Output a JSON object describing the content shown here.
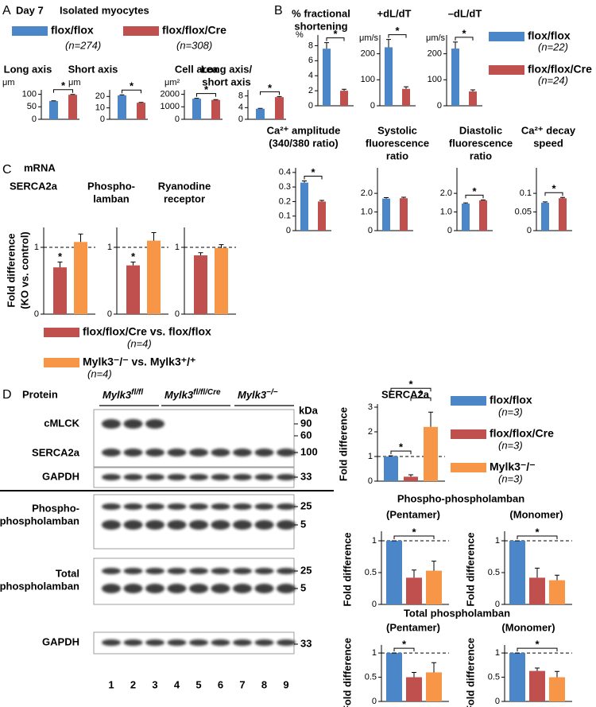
{
  "panel_a": {
    "label": "A",
    "day": "Day 7",
    "title": "Isolated myocytes",
    "legend": [
      {
        "name": "flox/flox",
        "n": "(n=274)",
        "color": "#4a86c8"
      },
      {
        "name": "flox/flox/Cre",
        "n": "(n=308)",
        "color": "#c0504d"
      }
    ]
  },
  "panel_b": {
    "label": "B",
    "legend": [
      {
        "name": "flox/flox",
        "n": "(n=22)",
        "color": "#4a86c8"
      },
      {
        "name": "flox/flox/Cre",
        "n": "(n=24)",
        "color": "#c0504d"
      }
    ]
  },
  "panel_c": {
    "label": "C",
    "title": "mRNA",
    "ylabel": [
      "Fold difference",
      "(KO vs. control)"
    ],
    "legend": [
      {
        "name": "flox/flox/Cre vs. flox/flox",
        "n": "(n=4)",
        "color": "#c0504d"
      },
      {
        "name": "Mylk3⁻/⁻ vs. Mylk3⁺/⁺",
        "n": "(n=4)",
        "color": "#f79646"
      }
    ]
  },
  "panel_d": {
    "label": "D",
    "title": "Protein",
    "headings": [
      "Phospho-phospholamban",
      "Total phospholamban"
    ],
    "legend": [
      {
        "name": "flox/flox",
        "n": "(n=3)",
        "color": "#4a86c8"
      },
      {
        "name": "flox/flox/Cre",
        "n": "(n=3)",
        "color": "#c0504d"
      },
      {
        "name": "Mylk3⁻/⁻",
        "n": "(n=3)",
        "color": "#f79646"
      }
    ]
  },
  "blot": {
    "groups": [
      {
        "base": "Mylk3",
        "sup": "fl/fl"
      },
      {
        "base": "Mylk3",
        "sup": "fl/fl/Cre"
      },
      {
        "base": "Mylk3",
        "sup": "−/−"
      }
    ],
    "rows": [
      [
        "cMLCK"
      ],
      [
        "SERCA2a"
      ],
      [
        "GAPDH"
      ],
      [
        "Phospho-",
        "phospholamban"
      ],
      [
        "Total",
        "phospholamban"
      ],
      [
        "GAPDH"
      ]
    ],
    "kda_title": "kDa",
    "kda": [
      90,
      60,
      100,
      33,
      25,
      5,
      25,
      5,
      33
    ],
    "lanes": [
      1,
      2,
      3,
      4,
      5,
      6,
      7,
      8,
      9
    ]
  },
  "chart_data": [
    {
      "type": "bar",
      "title": [
        "Long axis"
      ],
      "unit": "μm",
      "values": [
        73,
        98
      ],
      "errors": [
        1,
        1.5
      ],
      "colors": [
        "#4a86c8",
        "#c0504d"
      ],
      "ylim": [
        0,
        105
      ],
      "yticks": [
        0,
        50,
        100
      ],
      "annotations": [
        {
          "text": "*",
          "bars": [
            0,
            1
          ]
        }
      ]
    },
    {
      "type": "bar",
      "title": [
        "Short axis"
      ],
      "unit": "μm",
      "values": [
        21,
        14.5
      ],
      "errors": [
        0.4,
        0.3
      ],
      "colors": [
        "#4a86c8",
        "#c0504d"
      ],
      "ylim": [
        0,
        23
      ],
      "yticks": [
        0,
        10,
        20
      ],
      "annotations": [
        {
          "text": "*",
          "bars": [
            0,
            1
          ]
        }
      ]
    },
    {
      "type": "bar",
      "title": [
        "Cell area"
      ],
      "unit": "μm²",
      "values": [
        1650,
        1550
      ],
      "errors": [
        25,
        25
      ],
      "colors": [
        "#4a86c8",
        "#c0504d"
      ],
      "ylim": [
        0,
        2100
      ],
      "yticks": [
        0,
        1000,
        2000
      ],
      "annotations": [
        {
          "text": "*",
          "bars": [
            0,
            1
          ]
        }
      ]
    },
    {
      "type": "bar",
      "title": [
        "Long axis/",
        "short axis"
      ],
      "values": [
        3.6,
        7.6
      ],
      "errors": [
        0.15,
        0.2
      ],
      "colors": [
        "#4a86c8",
        "#c0504d"
      ],
      "ylim": [
        0,
        9
      ],
      "yticks": [
        0,
        4,
        8
      ],
      "annotations": [
        {
          "text": "*",
          "bars": [
            0,
            1
          ]
        }
      ]
    },
    {
      "type": "bar",
      "title": [
        "% fractional",
        "shortening"
      ],
      "unit": "%",
      "values": [
        7.6,
        2.0
      ],
      "errors": [
        0.8,
        0.2
      ],
      "colors": [
        "#4a86c8",
        "#c0504d"
      ],
      "ylim": [
        0,
        9
      ],
      "yticks": [
        0,
        2,
        4,
        6,
        8
      ],
      "annotations": [
        {
          "text": "*",
          "bars": [
            0,
            1
          ]
        }
      ]
    },
    {
      "type": "bar",
      "title": [
        "+dL/dT"
      ],
      "unit": "μm/s",
      "values": [
        225,
        65
      ],
      "errors": [
        30,
        8
      ],
      "colors": [
        "#4a86c8",
        "#c0504d"
      ],
      "ylim": [
        0,
        260
      ],
      "yticks": [
        0,
        100,
        200
      ],
      "annotations": [
        {
          "text": "*",
          "bars": [
            0,
            1
          ]
        }
      ]
    },
    {
      "type": "bar",
      "title": [
        "–dL/dT"
      ],
      "unit": "μm/s",
      "values": [
        220,
        55
      ],
      "errors": [
        25,
        6
      ],
      "colors": [
        "#4a86c8",
        "#c0504d"
      ],
      "ylim": [
        0,
        260
      ],
      "yticks": [
        0,
        100,
        200
      ],
      "annotations": [
        {
          "text": "*",
          "bars": [
            0,
            1
          ]
        }
      ]
    },
    {
      "type": "bar",
      "title": [
        "Ca²⁺ amplitude",
        "(340/380 ratio)"
      ],
      "values": [
        0.33,
        0.2
      ],
      "errors": [
        0.012,
        0.008
      ],
      "colors": [
        "#4a86c8",
        "#c0504d"
      ],
      "ylim": [
        0,
        0.41
      ],
      "yticks": [
        0,
        0.1,
        0.2,
        0.3,
        0.4
      ],
      "annotations": [
        {
          "text": "*",
          "bars": [
            0,
            1
          ]
        }
      ]
    },
    {
      "type": "bar",
      "title": [
        "Systolic",
        "fluorescence",
        "ratio"
      ],
      "values": [
        1.72,
        1.74
      ],
      "errors": [
        0.05,
        0.05
      ],
      "colors": [
        "#4a86c8",
        "#c0504d"
      ],
      "ylim": [
        0,
        3.2
      ],
      "yticks": [
        0,
        {
          "value": 1,
          "label": "1.0"
        },
        {
          "value": 2,
          "label": "2.0"
        }
      ]
    },
    {
      "type": "bar",
      "title": [
        "Diastolic",
        "fluorescence",
        "ratio"
      ],
      "values": [
        1.45,
        1.62
      ],
      "errors": [
        0.04,
        0.03
      ],
      "colors": [
        "#4a86c8",
        "#c0504d"
      ],
      "ylim": [
        0,
        3.2
      ],
      "yticks": [
        0,
        {
          "value": 1,
          "label": "1.0"
        },
        {
          "value": 2,
          "label": "2.0"
        }
      ],
      "annotations": [
        {
          "text": "*",
          "bars": [
            0,
            1
          ]
        }
      ]
    },
    {
      "type": "bar",
      "title": [
        "Ca²⁺ decay",
        "speed"
      ],
      "values": [
        0.075,
        0.087
      ],
      "errors": [
        0.002,
        0.002
      ],
      "colors": [
        "#4a86c8",
        "#c0504d"
      ],
      "ylim": [
        0,
        0.16
      ],
      "yticks": [
        0,
        0.05,
        0.1
      ],
      "annotations": [
        {
          "text": "*",
          "bars": [
            0,
            1
          ]
        }
      ]
    },
    {
      "type": "bar",
      "title": [
        "SERCA2a"
      ],
      "values": [
        0.7,
        1.08
      ],
      "errors": [
        0.08,
        0.12
      ],
      "colors": [
        "#c0504d",
        "#f79646"
      ],
      "ylim": [
        0,
        1.25
      ],
      "yticks": [
        0,
        1
      ],
      "reference": 1,
      "annotations": [
        {
          "text": "*",
          "bars": [
            0
          ]
        }
      ]
    },
    {
      "type": "bar",
      "title": [
        "Phospho-",
        "lamban"
      ],
      "values": [
        0.73,
        1.1
      ],
      "errors": [
        0.05,
        0.12
      ],
      "colors": [
        "#c0504d",
        "#f79646"
      ],
      "ylim": [
        0,
        1.25
      ],
      "yticks": [
        0,
        1
      ],
      "reference": 1,
      "annotations": [
        {
          "text": "*",
          "bars": [
            0
          ]
        }
      ]
    },
    {
      "type": "bar",
      "title": [
        "Ryanodine",
        "receptor"
      ],
      "values": [
        0.88,
        0.99
      ],
      "errors": [
        0.04,
        0.05
      ],
      "colors": [
        "#c0504d",
        "#f79646"
      ],
      "ylim": [
        0,
        1.25
      ],
      "yticks": [
        0,
        1
      ],
      "reference": 1
    },
    {
      "type": "bar",
      "title": [
        "SERCA2a"
      ],
      "ylabel": "Fold difference",
      "values": [
        1.0,
        0.18,
        2.2
      ],
      "errors": [
        0.03,
        0.08,
        0.6
      ],
      "colors": [
        "#4a86c8",
        "#c0504d",
        "#f79646"
      ],
      "ylim": [
        0,
        3
      ],
      "yticks": [
        0,
        1,
        2,
        3
      ],
      "reference": 1,
      "annotations": [
        {
          "text": "*",
          "bars": [
            0,
            1
          ]
        },
        {
          "text": "*",
          "bars": [
            1,
            2
          ]
        },
        {
          "text": "*",
          "bars": [
            0,
            2
          ]
        }
      ]
    },
    {
      "type": "bar",
      "title": [
        "(Pentamer)"
      ],
      "ylabel": "Fold difference",
      "values": [
        1.0,
        0.42,
        0.53
      ],
      "errors": [
        0,
        0.12,
        0.15
      ],
      "colors": [
        "#4a86c8",
        "#c0504d",
        "#f79646"
      ],
      "ylim": [
        0,
        1.1
      ],
      "yticks": [
        0,
        0.5,
        1
      ],
      "reference": 1,
      "annotations": [
        {
          "text": "*",
          "bars": [
            0,
            2
          ]
        }
      ]
    },
    {
      "type": "bar",
      "title": [
        "(Monomer)"
      ],
      "ylabel": "Fold difference",
      "values": [
        1.0,
        0.42,
        0.38
      ],
      "errors": [
        0,
        0.15,
        0.08
      ],
      "colors": [
        "#4a86c8",
        "#c0504d",
        "#f79646"
      ],
      "ylim": [
        0,
        1.1
      ],
      "yticks": [
        0,
        0.5,
        1
      ],
      "reference": 1,
      "annotations": [
        {
          "text": "*",
          "bars": [
            0,
            2
          ]
        }
      ]
    },
    {
      "type": "bar",
      "title": [
        "(Pentamer)"
      ],
      "ylabel": "Fold difference",
      "values": [
        1.0,
        0.5,
        0.6
      ],
      "errors": [
        0,
        0.1,
        0.2
      ],
      "colors": [
        "#4a86c8",
        "#c0504d",
        "#f79646"
      ],
      "ylim": [
        0,
        1.1
      ],
      "yticks": [
        0,
        0.5,
        1
      ],
      "reference": 1,
      "annotations": [
        {
          "text": "*",
          "bars": [
            0,
            1
          ]
        }
      ]
    },
    {
      "type": "bar",
      "title": [
        "(Monomer)"
      ],
      "ylabel": "Fold difference",
      "values": [
        1.0,
        0.63,
        0.5
      ],
      "errors": [
        0,
        0.06,
        0.12
      ],
      "colors": [
        "#4a86c8",
        "#c0504d",
        "#f79646"
      ],
      "ylim": [
        0,
        1.1
      ],
      "yticks": [
        0,
        0.5,
        1
      ],
      "reference": 1,
      "annotations": [
        {
          "text": "*",
          "bars": [
            0,
            2
          ]
        }
      ]
    }
  ]
}
